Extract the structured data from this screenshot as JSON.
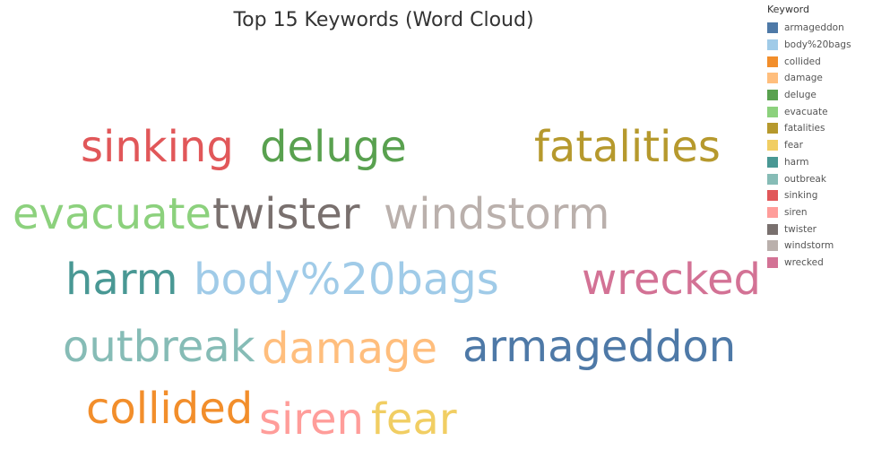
{
  "chart_data": {
    "type": "word-cloud",
    "title": "Top 15 Keywords (Word Cloud)",
    "legend": {
      "title": "Keyword",
      "placement": "top-right",
      "items": [
        {
          "label": "armageddon",
          "color": "#4e79a7"
        },
        {
          "label": "body%20bags",
          "color": "#a0cbe8"
        },
        {
          "label": "collided",
          "color": "#f28e2b"
        },
        {
          "label": "damage",
          "color": "#ffbe7d"
        },
        {
          "label": "deluge",
          "color": "#59a14f"
        },
        {
          "label": "evacuate",
          "color": "#8cd17d"
        },
        {
          "label": "fatalities",
          "color": "#b6992d"
        },
        {
          "label": "fear",
          "color": "#f1ce63"
        },
        {
          "label": "harm",
          "color": "#499894"
        },
        {
          "label": "outbreak",
          "color": "#86bcb6"
        },
        {
          "label": "sinking",
          "color": "#e15759"
        },
        {
          "label": "siren",
          "color": "#ff9d9a"
        },
        {
          "label": "twister",
          "color": "#79706e"
        },
        {
          "label": "windstorm",
          "color": "#bab0ac"
        },
        {
          "label": "wrecked",
          "color": "#d37295"
        }
      ]
    },
    "words": [
      {
        "text": "sinking",
        "color": "#e15759"
      },
      {
        "text": "deluge",
        "color": "#59a14f"
      },
      {
        "text": "fatalities",
        "color": "#b6992d"
      },
      {
        "text": "evacuate",
        "color": "#8cd17d"
      },
      {
        "text": "twister",
        "color": "#79706e"
      },
      {
        "text": "windstorm",
        "color": "#bab0ac"
      },
      {
        "text": "harm",
        "color": "#499894"
      },
      {
        "text": "body%20bags",
        "color": "#a0cbe8"
      },
      {
        "text": "wrecked",
        "color": "#d37295"
      },
      {
        "text": "outbreak",
        "color": "#86bcb6"
      },
      {
        "text": "damage",
        "color": "#ffbe7d"
      },
      {
        "text": "armageddon",
        "color": "#4e79a7"
      },
      {
        "text": "collided",
        "color": "#f28e2b"
      },
      {
        "text": "siren",
        "color": "#ff9d9a"
      },
      {
        "text": "fear",
        "color": "#f1ce63"
      }
    ]
  }
}
